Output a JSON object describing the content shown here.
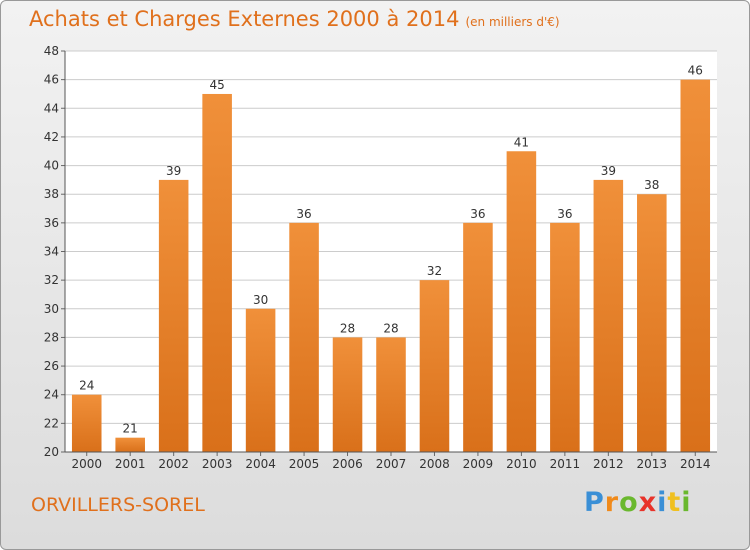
{
  "chart_data": {
    "type": "bar",
    "title": "Achats et Charges Externes 2000 à 2014",
    "subtitle": "(en milliers d'€)",
    "categories": [
      "2000",
      "2001",
      "2002",
      "2003",
      "2004",
      "2005",
      "2006",
      "2007",
      "2008",
      "2009",
      "2010",
      "2011",
      "2012",
      "2013",
      "2014"
    ],
    "values": [
      24,
      21,
      39,
      45,
      30,
      36,
      28,
      28,
      32,
      36,
      41,
      36,
      39,
      38,
      46
    ],
    "ylim": [
      20,
      48
    ],
    "yticks": [
      20,
      22,
      24,
      26,
      28,
      30,
      32,
      34,
      36,
      38,
      40,
      42,
      44,
      46,
      48
    ],
    "grid": true,
    "bar_color": "#f0903a",
    "bar_color_dark": "#d9701a"
  },
  "location": "ORVILLERS-SOREL",
  "logo": {
    "text": "Proxiti",
    "letters": [
      {
        "ch": "P",
        "color": "#3a8fd6"
      },
      {
        "ch": "r",
        "color": "#f08a1a"
      },
      {
        "ch": "o",
        "color": "#6ab82e"
      },
      {
        "ch": "x",
        "color": "#e8332a"
      },
      {
        "ch": "i",
        "color": "#3a8fd6"
      },
      {
        "ch": "t",
        "color": "#f0c020"
      },
      {
        "ch": "i",
        "color": "#6ab82e"
      }
    ]
  },
  "colors": {
    "accent": "#e0701c",
    "axis": "#333333",
    "grid": "#cccccc"
  }
}
